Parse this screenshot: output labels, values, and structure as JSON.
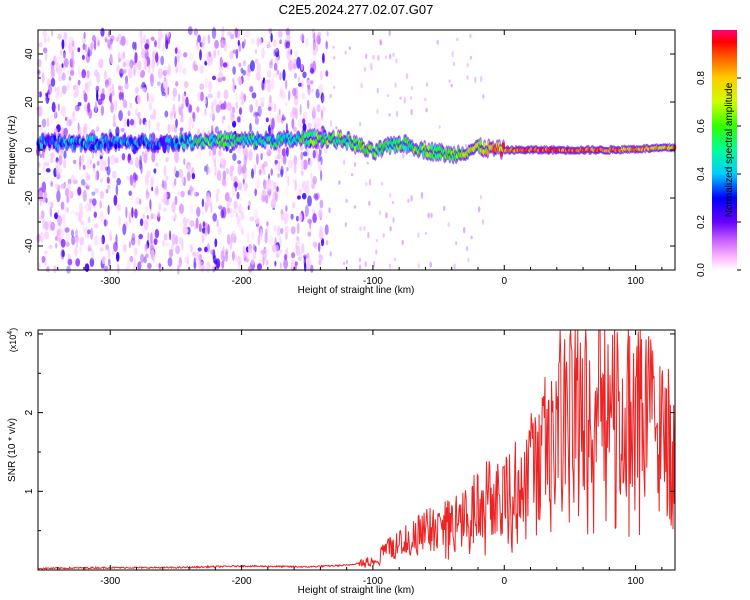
{
  "figure": {
    "title": "C2E5.2024.277.02.07.G07"
  },
  "chart_data": [
    {
      "type": "heatmap",
      "title": "C2E5.2024.277.02.07.G07",
      "xlabel": "Height of straight line (km)",
      "ylabel": "Frequency (Hz)",
      "xlim": [
        -355,
        130
      ],
      "ylim": [
        -50,
        50
      ],
      "x_ticks": [
        -300,
        -200,
        -100,
        0,
        100
      ],
      "y_ticks": [
        -40,
        -20,
        0,
        20,
        40
      ],
      "colorbar": {
        "label": "Normalized spectral amplitude",
        "range": [
          0,
          1
        ],
        "ticks": [
          "0.0",
          "0.2",
          "0.4",
          "0.6",
          "0.8"
        ],
        "colormap": [
          "#ff88ff",
          "#8800ff",
          "#0000ff",
          "#00ffff",
          "#00ff00",
          "#ffff00",
          "#ff8800",
          "#ff0000",
          "#ff0088"
        ]
      },
      "ridge": [
        {
          "x": -330,
          "freq": 3,
          "amp": 0.35
        },
        {
          "x": -300,
          "freq": 3,
          "amp": 0.38
        },
        {
          "x": -260,
          "freq": 3,
          "amp": 0.3
        },
        {
          "x": -230,
          "freq": 4,
          "amp": 0.55
        },
        {
          "x": -200,
          "freq": 4,
          "amp": 0.5
        },
        {
          "x": -170,
          "freq": 4,
          "amp": 0.45
        },
        {
          "x": -140,
          "freq": 5,
          "amp": 0.6
        },
        {
          "x": -120,
          "freq": 4,
          "amp": 0.55
        },
        {
          "x": -100,
          "freq": -1,
          "amp": 0.6
        },
        {
          "x": -80,
          "freq": 3,
          "amp": 0.55
        },
        {
          "x": -60,
          "freq": 0,
          "amp": 0.6
        },
        {
          "x": -40,
          "freq": -2,
          "amp": 0.55
        },
        {
          "x": -20,
          "freq": 1,
          "amp": 0.7
        },
        {
          "x": 0,
          "freq": 0,
          "amp": 0.85
        },
        {
          "x": 40,
          "freq": 0,
          "amp": 0.9
        },
        {
          "x": 80,
          "freq": 0,
          "amp": 0.85
        },
        {
          "x": 130,
          "freq": 1,
          "amp": 0.8
        }
      ],
      "noise_extent_x": [
        -355,
        -135
      ]
    },
    {
      "type": "line",
      "xlabel": "Height of straight line (km)",
      "ylabel": "SNR (10 * v/v)",
      "y_multiplier": "(x10^4)",
      "y_multiplier_base": "(x10",
      "y_multiplier_exp": "4",
      "y_multiplier_close": ")",
      "xlim": [
        -355,
        130
      ],
      "ylim": [
        0,
        3.05
      ],
      "x_ticks": [
        -300,
        -200,
        -100,
        0,
        100
      ],
      "y_ticks": [
        1,
        2,
        3
      ],
      "line_color": "#ee2222",
      "series": [
        {
          "x": [
            -355,
            -300,
            -250,
            -200,
            -150,
            -120,
            -100,
            -90,
            -80,
            -70,
            -60,
            -50,
            -40,
            -30,
            -20,
            -10,
            0,
            10,
            20,
            30,
            40,
            50,
            55,
            60,
            70,
            80,
            90,
            100,
            110,
            120,
            130
          ],
          "values": [
            0.02,
            0.03,
            0.03,
            0.05,
            0.04,
            0.06,
            0.12,
            0.25,
            0.35,
            0.4,
            0.5,
            0.55,
            0.6,
            0.75,
            0.85,
            0.95,
            1.0,
            1.1,
            1.3,
            1.6,
            1.9,
            2.2,
            2.5,
            2.1,
            2.2,
            2.4,
            2.0,
            2.2,
            2.0,
            1.7,
            1.5
          ]
        }
      ]
    }
  ]
}
